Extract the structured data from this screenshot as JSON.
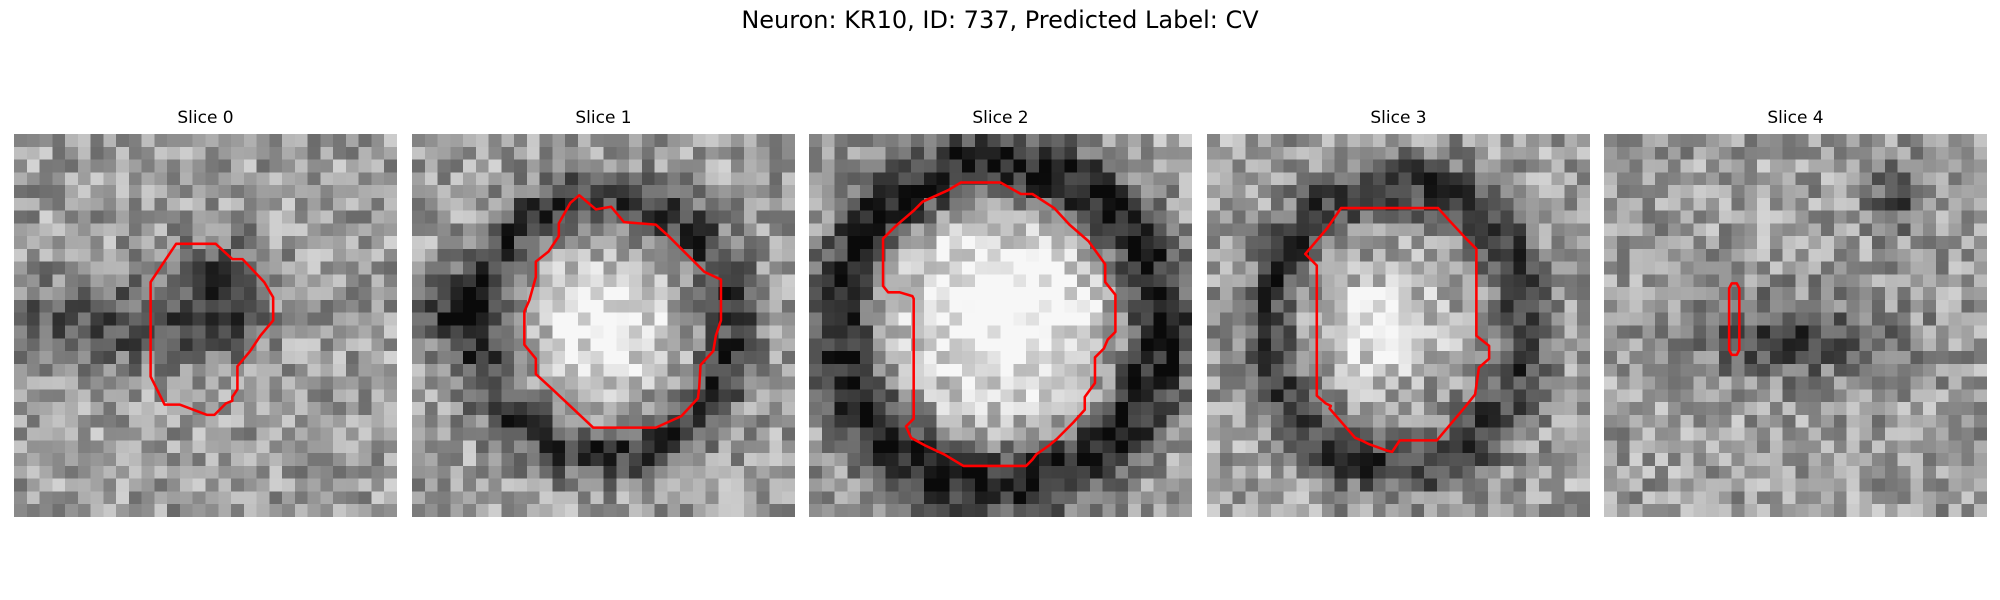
{
  "title": "Neuron: KR10, ID: 737, Predicted Label: CV",
  "colors": {
    "contour": "#ff0000",
    "background": "#ffffff"
  },
  "panels": [
    {
      "title": "Slice 0",
      "grid": 30,
      "seed": 11,
      "dark_blobs": [
        {
          "cx": 6,
          "cy": 15,
          "rx": 8,
          "ry": 4,
          "strength": 0.35
        },
        {
          "cx": 16,
          "cy": 13,
          "rx": 4,
          "ry": 5,
          "strength": 0.45
        }
      ],
      "contour": [
        [
          10.7,
          11.6
        ],
        [
          12.7,
          8.6
        ],
        [
          15.8,
          8.6
        ],
        [
          17.1,
          9.8
        ],
        [
          17.9,
          9.8
        ],
        [
          19.6,
          11.6
        ],
        [
          20.3,
          12.8
        ],
        [
          20.3,
          14.6
        ],
        [
          19.3,
          15.8
        ],
        [
          18.5,
          17.0
        ],
        [
          17.5,
          18.2
        ],
        [
          17.5,
          20.0
        ],
        [
          17.1,
          20.6
        ],
        [
          17.1,
          20.9
        ],
        [
          16.6,
          21.1
        ],
        [
          15.7,
          22.0
        ],
        [
          15.1,
          22.0
        ],
        [
          13.0,
          21.2
        ],
        [
          11.8,
          21.2
        ],
        [
          10.7,
          19.0
        ]
      ]
    },
    {
      "title": "Slice 1",
      "grid": 30,
      "seed": 23,
      "dark_blobs": [
        {
          "cx": 15,
          "cy": 15,
          "rx": 10,
          "ry": 10,
          "ring": true,
          "strength": 0.4
        },
        {
          "cx": 3,
          "cy": 14,
          "rx": 3,
          "ry": 3,
          "strength": 0.35
        }
      ],
      "light_blobs": [
        {
          "cx": 15,
          "cy": 15,
          "rx": 5.5,
          "ry": 5.5,
          "strength": 0.35
        }
      ],
      "contour": [
        [
          9.2,
          13.0
        ],
        [
          9.7,
          11.2
        ],
        [
          9.7,
          10.0
        ],
        [
          10.7,
          9.2
        ],
        [
          11.5,
          8.0
        ],
        [
          11.5,
          7.0
        ],
        [
          12.4,
          5.4
        ],
        [
          13.1,
          4.8
        ],
        [
          14.4,
          5.9
        ],
        [
          15.6,
          5.7
        ],
        [
          16.6,
          6.9
        ],
        [
          19.1,
          7.1
        ],
        [
          20.1,
          8.0
        ],
        [
          21.6,
          9.5
        ],
        [
          22.9,
          10.8
        ],
        [
          24.2,
          11.4
        ],
        [
          24.2,
          14.6
        ],
        [
          23.8,
          15.8
        ],
        [
          23.6,
          17.0
        ],
        [
          22.6,
          18.1
        ],
        [
          22.5,
          19.8
        ],
        [
          22.4,
          20.7
        ],
        [
          21.1,
          22.1
        ],
        [
          19.1,
          23.0
        ],
        [
          18.7,
          23.0
        ],
        [
          14.2,
          23.0
        ],
        [
          11.0,
          20.0
        ],
        [
          9.7,
          18.8
        ],
        [
          9.7,
          17.6
        ],
        [
          8.8,
          16.5
        ],
        [
          8.8,
          13.9
        ]
      ]
    },
    {
      "title": "Slice 2",
      "grid": 30,
      "seed": 37,
      "dark_blobs": [
        {
          "cx": 15,
          "cy": 15,
          "rx": 12.5,
          "ry": 12.5,
          "ring": true,
          "strength": 0.55
        }
      ],
      "light_blobs": [
        {
          "cx": 15,
          "cy": 14,
          "rx": 9,
          "ry": 8,
          "strength": 0.45
        }
      ],
      "contour": [
        [
          5.8,
          9.2
        ],
        [
          5.8,
          8.2
        ],
        [
          6.8,
          7.2
        ],
        [
          8.2,
          6.0
        ],
        [
          8.9,
          5.3
        ],
        [
          10.9,
          4.4
        ],
        [
          11.9,
          3.8
        ],
        [
          15.0,
          3.8
        ],
        [
          16.6,
          4.7
        ],
        [
          17.5,
          4.7
        ],
        [
          19.2,
          5.8
        ],
        [
          20.4,
          7.1
        ],
        [
          21.9,
          8.4
        ],
        [
          23.2,
          10.2
        ],
        [
          23.2,
          11.6
        ],
        [
          24.0,
          12.6
        ],
        [
          24.0,
          14.8
        ],
        [
          24.0,
          15.5
        ],
        [
          23.4,
          16.1
        ],
        [
          23.1,
          16.8
        ],
        [
          22.4,
          17.5
        ],
        [
          22.4,
          19.5
        ],
        [
          21.6,
          20.6
        ],
        [
          21.6,
          21.6
        ],
        [
          20.7,
          22.6
        ],
        [
          19.4,
          23.9
        ],
        [
          18.8,
          24.4
        ],
        [
          17.8,
          25.1
        ],
        [
          17.5,
          25.5
        ],
        [
          17.0,
          26.0
        ],
        [
          12.1,
          26.0
        ],
        [
          10.6,
          25.1
        ],
        [
          9.1,
          24.4
        ],
        [
          8.0,
          23.8
        ],
        [
          7.6,
          22.9
        ],
        [
          8.2,
          22.3
        ],
        [
          8.2,
          12.9
        ],
        [
          8.1,
          12.7
        ],
        [
          7.1,
          12.4
        ],
        [
          6.2,
          12.4
        ],
        [
          5.8,
          11.9
        ]
      ]
    },
    {
      "title": "Slice 3",
      "grid": 30,
      "seed": 41,
      "dark_blobs": [
        {
          "cx": 15,
          "cy": 15,
          "rx": 10,
          "ry": 11,
          "ring": true,
          "strength": 0.4
        }
      ],
      "light_blobs": [
        {
          "cx": 13,
          "cy": 15,
          "rx": 5,
          "ry": 4,
          "strength": 0.35
        }
      ],
      "contour": [
        [
          7.7,
          9.4
        ],
        [
          9.4,
          7.4
        ],
        [
          10.5,
          5.8
        ],
        [
          18.1,
          5.8
        ],
        [
          19.0,
          6.8
        ],
        [
          20.3,
          8.2
        ],
        [
          21.1,
          9.0
        ],
        [
          21.1,
          15.8
        ],
        [
          22.1,
          16.6
        ],
        [
          22.1,
          17.6
        ],
        [
          21.3,
          18.3
        ],
        [
          21.0,
          20.4
        ],
        [
          20.2,
          21.4
        ],
        [
          18.0,
          24.0
        ],
        [
          15.1,
          24.0
        ],
        [
          14.5,
          24.9
        ],
        [
          14.1,
          24.8
        ],
        [
          12.7,
          24.3
        ],
        [
          12.1,
          24.0
        ],
        [
          11.6,
          23.8
        ],
        [
          9.6,
          21.5
        ],
        [
          9.7,
          21.3
        ],
        [
          9.3,
          21.1
        ],
        [
          8.6,
          20.5
        ],
        [
          8.6,
          14.3
        ],
        [
          8.6,
          10.3
        ]
      ]
    },
    {
      "title": "Slice 4",
      "grid": 30,
      "seed": 53,
      "dark_blobs": [
        {
          "cx": 15,
          "cy": 16,
          "rx": 9,
          "ry": 3.5,
          "strength": 0.35
        },
        {
          "cx": 23,
          "cy": 5,
          "rx": 3,
          "ry": 3,
          "strength": 0.3
        }
      ],
      "contour": [
        [
          9.8,
          12.1
        ],
        [
          10.0,
          11.7
        ],
        [
          10.4,
          11.7
        ],
        [
          10.6,
          12.1
        ],
        [
          10.6,
          16.9
        ],
        [
          10.4,
          17.3
        ],
        [
          10.0,
          17.3
        ],
        [
          9.8,
          16.9
        ]
      ]
    }
  ]
}
